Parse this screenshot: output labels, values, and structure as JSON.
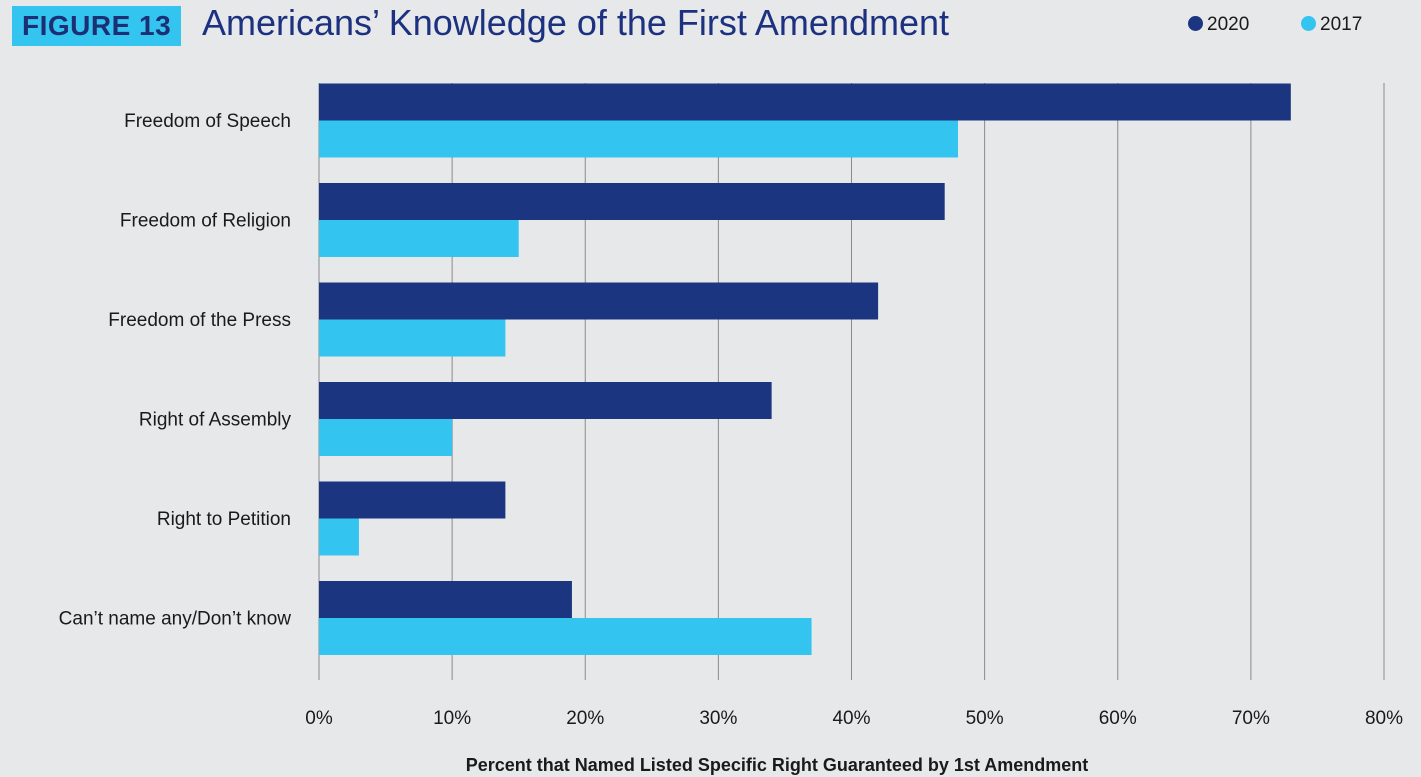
{
  "figure_label": "FIGURE 13",
  "title": "Americans’ Knowledge of the First Amendment",
  "colors": {
    "series_2020": "#1b3580",
    "series_2017": "#33c4f0",
    "grid": "#8a8a8a",
    "background": "#e7e8ea"
  },
  "chart_data": {
    "type": "bar",
    "orientation": "horizontal",
    "title": "Americans’ Knowledge of the First Amendment",
    "categories": [
      "Freedom of Speech",
      "Freedom of Religion",
      "Freedom of the Press",
      "Right of Assembly",
      "Right to Petition",
      "Can’t name any/Don’t know"
    ],
    "series": [
      {
        "name": "2020",
        "values": [
          73,
          47,
          42,
          34,
          14,
          19
        ]
      },
      {
        "name": "2017",
        "values": [
          48,
          15,
          14,
          10,
          3,
          37
        ]
      }
    ],
    "xlabel": "Percent that Named Listed Specific Right Guaranteed by 1st Amendment",
    "ylabel": "",
    "xlim": [
      0,
      80
    ],
    "xticks": [
      "0%",
      "10%",
      "20%",
      "30%",
      "40%",
      "50%",
      "60%",
      "70%",
      "80%"
    ],
    "grid": "vertical",
    "legend_position": "top-right"
  }
}
